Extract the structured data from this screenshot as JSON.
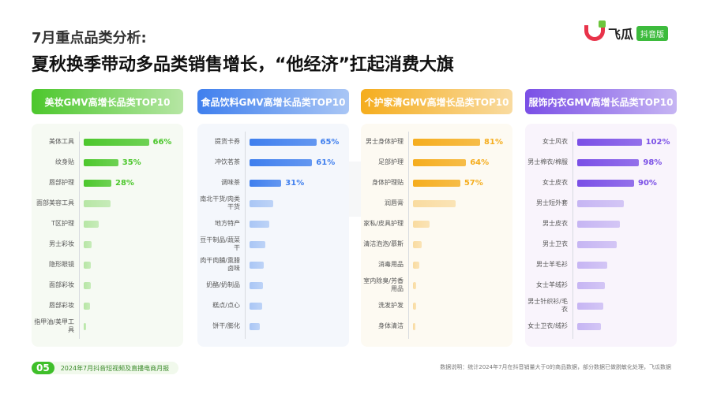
{
  "header": {
    "kicker": "7月重点品类分析:",
    "title": "夏秋换季带动多品类销售增长，“他经济”扛起消费大旗"
  },
  "logo": {
    "name": "飞瓜",
    "badge": "抖音版"
  },
  "watermark": "飞瓜数据",
  "panels": [
    {
      "title": "美妆GMV高增长品类TOP10",
      "color": "#4cc72c",
      "light": "#b6e6a4",
      "bg": "#f6faf3",
      "items": [
        {
          "label": "美体工具",
          "value": 66,
          "shown": "66%"
        },
        {
          "label": "纹身贴",
          "value": 35,
          "shown": "35%"
        },
        {
          "label": "唇部护理",
          "value": 28,
          "shown": "28%"
        },
        {
          "label": "面部美容工具",
          "value": 27
        },
        {
          "label": "T区护理",
          "value": 15
        },
        {
          "label": "男士彩妆",
          "value": 8
        },
        {
          "label": "隐形眼镜",
          "value": 7
        },
        {
          "label": "面部彩妆",
          "value": 7
        },
        {
          "label": "唇部彩妆",
          "value": 6
        },
        {
          "label": "指甲油/美甲工具",
          "value": 2
        }
      ]
    },
    {
      "title": "食品饮料GMV高增长品类TOP10",
      "color": "#3f7fee",
      "light": "#a9c6f5",
      "bg": "#f4f7fc",
      "items": [
        {
          "label": "提货卡券",
          "value": 65,
          "shown": "65%"
        },
        {
          "label": "冲饮茗茶",
          "value": 61,
          "shown": "61%"
        },
        {
          "label": "调味茶",
          "value": 31,
          "shown": "31%"
        },
        {
          "label": "南北干货/肉类干货",
          "value": 23
        },
        {
          "label": "地方特产",
          "value": 19
        },
        {
          "label": "豆干制品/蔬菜干",
          "value": 15
        },
        {
          "label": "肉干肉脯/熏腊卤味",
          "value": 13.5
        },
        {
          "label": "奶酪/奶制品",
          "value": 13
        },
        {
          "label": "糕点/点心",
          "value": 12
        },
        {
          "label": "饼干/膨化",
          "value": 10
        }
      ]
    },
    {
      "title": "个护家清GMV高增长品类TOP10",
      "color": "#f5ad1e",
      "light": "#f9dba0",
      "bg": "#fdfaf2",
      "items": [
        {
          "label": "男士身体护理",
          "value": 81,
          "shown": "81%"
        },
        {
          "label": "足部护理",
          "value": 64,
          "shown": "64%"
        },
        {
          "label": "身体护理贴",
          "value": 57,
          "shown": "57%"
        },
        {
          "label": "润唇膏",
          "value": 51
        },
        {
          "label": "家私/皮具护理",
          "value": 20
        },
        {
          "label": "清洁泡泡/慕斯",
          "value": 10
        },
        {
          "label": "消毒用品",
          "value": 8
        },
        {
          "label": "室内除臭/芳香用品",
          "value": 4
        },
        {
          "label": "洗发护发",
          "value": 4
        },
        {
          "label": "身体清洁",
          "value": 3
        }
      ]
    },
    {
      "title": "服饰内衣GMV高增长品类TOP10",
      "color": "#7a4fe6",
      "light": "#c6b5f3",
      "bg": "#f9f4fc",
      "items": [
        {
          "label": "女士风衣",
          "value": 102,
          "shown": "102%"
        },
        {
          "label": "男士棉衣/棉服",
          "value": 98,
          "shown": "98%"
        },
        {
          "label": "女士皮衣",
          "value": 90,
          "shown": "90%"
        },
        {
          "label": "男士短外套",
          "value": 74
        },
        {
          "label": "男士皮衣",
          "value": 67
        },
        {
          "label": "男士卫衣",
          "value": 62
        },
        {
          "label": "男士羊毛衫",
          "value": 48
        },
        {
          "label": "女士羊绒衫",
          "value": 44
        },
        {
          "label": "男士针织衫/毛衣",
          "value": 41
        },
        {
          "label": "女士卫衣/绒衫",
          "value": 38
        }
      ]
    }
  ],
  "footer": {
    "page": "05",
    "report": "2024年7月抖音短视频及直播电商月报",
    "note": "数据说明：统计2024年7月在抖音销量大于0的商品数据，部分数据已做脱敏化处理，飞瓜数据"
  }
}
